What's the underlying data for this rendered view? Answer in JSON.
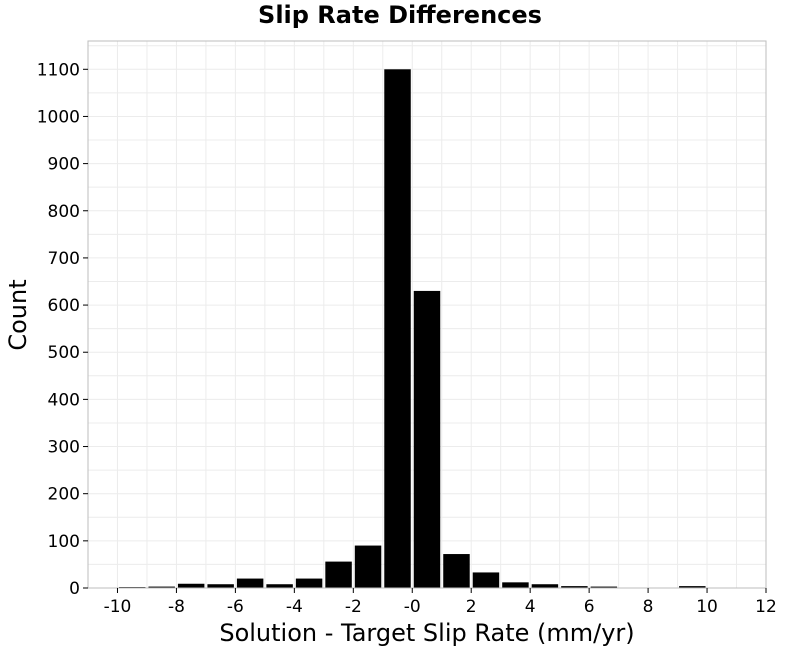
{
  "chart_data": {
    "type": "bar",
    "title": "Slip Rate Differences",
    "xlabel": "Solution - Target Slip Rate (mm/yr)",
    "ylabel": "Count",
    "xlim": [
      -11,
      12
    ],
    "ylim": [
      0,
      1160
    ],
    "grid": true,
    "x_ticks": [
      -10,
      -8,
      -6,
      -4,
      -2,
      0,
      2,
      4,
      6,
      8,
      10,
      12
    ],
    "x_tick_labels": [
      "-10",
      "-8",
      "-6",
      "-4",
      "-2",
      "-0",
      "2",
      "4",
      "6",
      "8",
      "10",
      "12"
    ],
    "y_ticks": [
      0,
      100,
      200,
      300,
      400,
      500,
      600,
      700,
      800,
      900,
      1000,
      1100
    ],
    "bins": [
      {
        "x": -10,
        "count": 2
      },
      {
        "x": -9,
        "count": 3
      },
      {
        "x": -8,
        "count": 9
      },
      {
        "x": -7,
        "count": 8
      },
      {
        "x": -6,
        "count": 20
      },
      {
        "x": -5,
        "count": 8
      },
      {
        "x": -4,
        "count": 20
      },
      {
        "x": -3,
        "count": 56
      },
      {
        "x": -2,
        "count": 90
      },
      {
        "x": -1,
        "count": 1100
      },
      {
        "x": 0,
        "count": 630
      },
      {
        "x": 1,
        "count": 72
      },
      {
        "x": 2,
        "count": 33
      },
      {
        "x": 3,
        "count": 12
      },
      {
        "x": 4,
        "count": 8
      },
      {
        "x": 5,
        "count": 4
      },
      {
        "x": 6,
        "count": 3
      },
      {
        "x": 9,
        "count": 4
      }
    ]
  }
}
